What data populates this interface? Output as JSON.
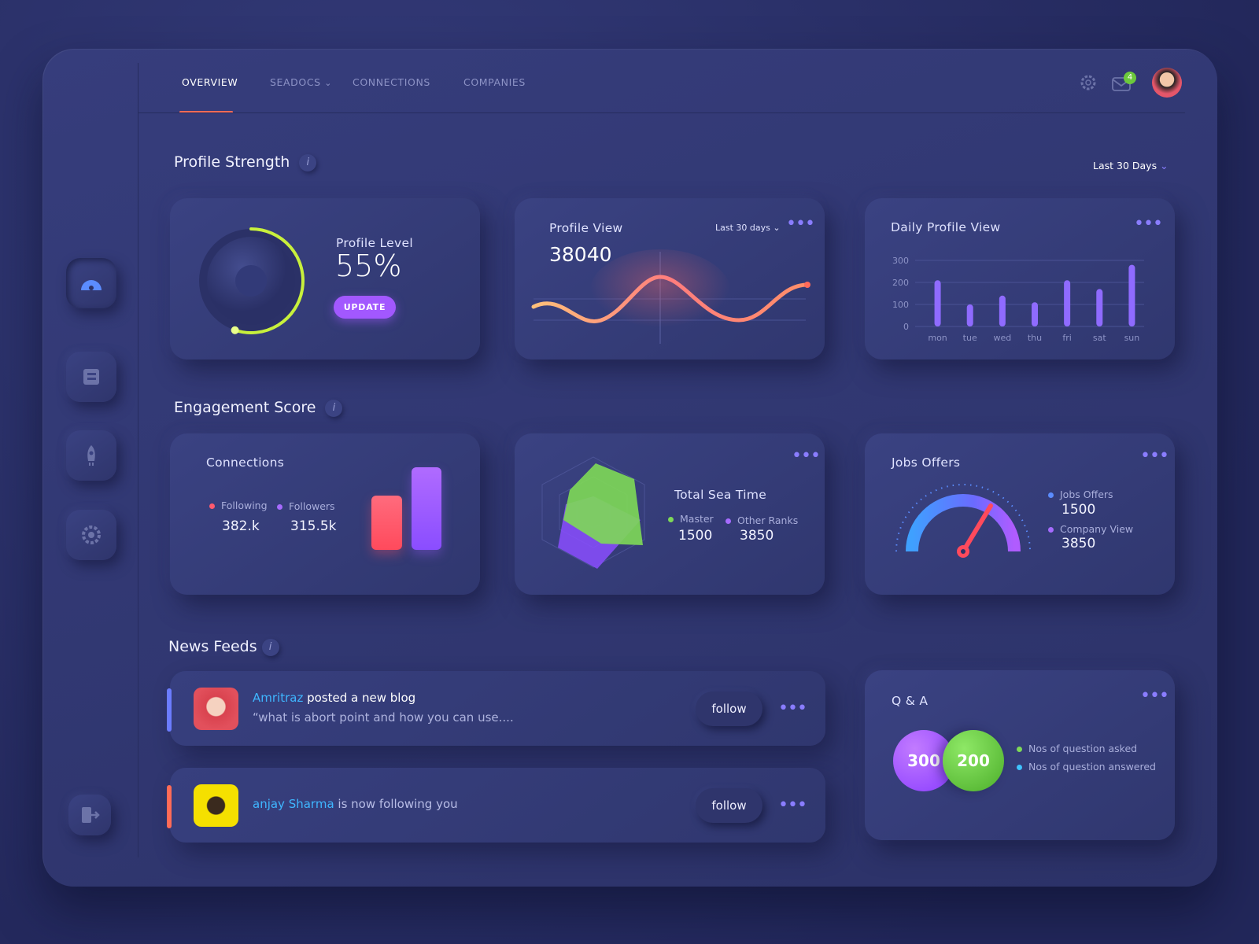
{
  "nav": {
    "tabs": [
      "OVERVIEW",
      "SEADOCS",
      "CONNECTIONS",
      "COMPANIES"
    ],
    "notification_count": 4
  },
  "profile_strength": {
    "title": "Profile Strength",
    "filter": "Last 30 Days"
  },
  "profile_level": {
    "label": "Profile Level",
    "value": {
      "value": 55,
      "label": "55%"
    },
    "button": "UPDATE"
  },
  "profile_view": {
    "title": "Profile View",
    "filter": "Last 30 days",
    "total": 38040
  },
  "chart_data": {
    "type": "bar",
    "title": "Daily Profile View",
    "categories": [
      "mon",
      "tue",
      "wed",
      "thu",
      "fri",
      "sat",
      "sun"
    ],
    "values": [
      210,
      100,
      140,
      110,
      210,
      170,
      280
    ],
    "color": "#8f6bff",
    "ylim": [
      0,
      300
    ],
    "yticks": [
      0,
      100,
      200,
      300
    ],
    "grid": true
  },
  "engagement_score": {
    "title": "Engagement Score"
  },
  "connections": {
    "title": "Connections",
    "items": [
      {
        "name": "Following",
        "value": "382.k",
        "color": "#ff5a6e"
      },
      {
        "name": "Followers",
        "value": "315.5k",
        "color": "#a66bff"
      }
    ]
  },
  "sea_time": {
    "title": "Total Sea Time",
    "items": [
      {
        "name": "Master",
        "value": 1500,
        "color": "#7ed957"
      },
      {
        "name": "Other Ranks",
        "value": 3850,
        "color": "#a66bff"
      }
    ]
  },
  "jobs_offers": {
    "title": "Jobs Offers",
    "items": [
      {
        "name": "Jobs Offers",
        "value": 1500,
        "color": "#5b8cff"
      },
      {
        "name": "Company View",
        "value": 3850,
        "color": "#a66bff"
      }
    ]
  },
  "news_feeds": {
    "title": "News Feeds",
    "items": [
      {
        "user": "Amritraz",
        "action": "posted a new blog",
        "excerpt": "“what is abort point and how you can use....",
        "button": "follow"
      },
      {
        "user": "anjay Sharma",
        "action": "is now following you",
        "button": "follow"
      }
    ]
  },
  "qa": {
    "title": "Q & A",
    "items": [
      {
        "name": "Nos of question asked",
        "value": 300,
        "color": "#7ed957"
      },
      {
        "name": "Nos of question answered",
        "value": 200,
        "color": "#3fc3ff"
      }
    ]
  }
}
